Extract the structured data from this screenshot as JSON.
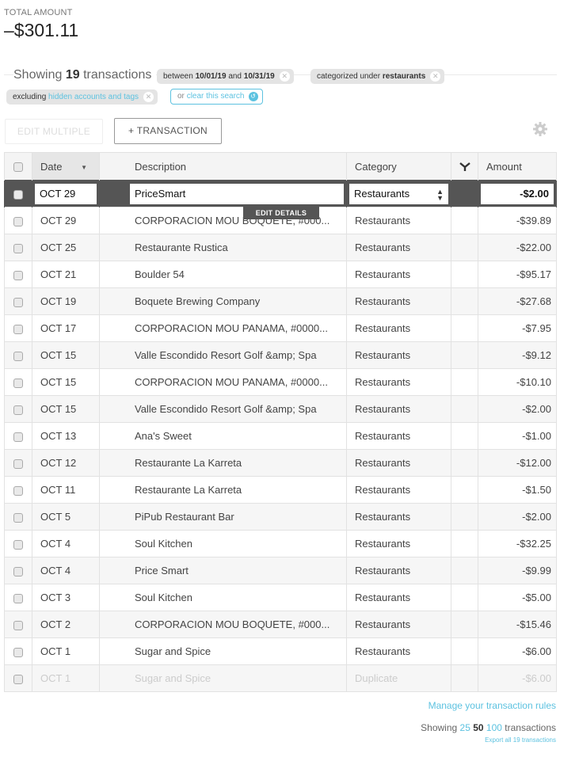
{
  "summary": {
    "total_label": "TOTAL AMOUNT",
    "total_value": "–$301.11"
  },
  "filters": {
    "showing_prefix": "Showing",
    "count": "19",
    "showing_suffix": "transactions",
    "date_chip": {
      "between": "between",
      "start": "10/01/19",
      "and": "and",
      "end": "10/31/19"
    },
    "category_chip": {
      "prefix": "categorized under",
      "value": "restaurants"
    },
    "exclude_chip": {
      "prefix": "excluding",
      "link": "hidden accounts and tags"
    },
    "clear_chip": {
      "prefix": "or",
      "link": "clear this search"
    }
  },
  "toolbar": {
    "edit_multiple": "EDIT MULTIPLE",
    "add_transaction": "+ TRANSACTION"
  },
  "table": {
    "headers": {
      "date": "Date",
      "description": "Description",
      "category": "Category",
      "amount": "Amount"
    },
    "editing_row": {
      "date": "OCT 29",
      "description": "PriceSmart",
      "category": "Restaurants",
      "amount": "-$2.00"
    },
    "tooltip": "EDIT DETAILS",
    "rows": [
      {
        "date": "OCT 29",
        "description": "CORPORACION MOU BOQUETE, #000...",
        "category": "Restaurants",
        "amount": "-$39.89"
      },
      {
        "date": "OCT 25",
        "description": "Restaurante Rustica",
        "category": "Restaurants",
        "amount": "-$22.00"
      },
      {
        "date": "OCT 21",
        "description": "Boulder 54",
        "category": "Restaurants",
        "amount": "-$95.17"
      },
      {
        "date": "OCT 19",
        "description": "Boquete Brewing Company",
        "category": "Restaurants",
        "amount": "-$27.68"
      },
      {
        "date": "OCT 17",
        "description": "CORPORACION MOU PANAMA, #0000...",
        "category": "Restaurants",
        "amount": "-$7.95"
      },
      {
        "date": "OCT 15",
        "description": "Valle Escondido Resort Golf &amp; Spa",
        "category": "Restaurants",
        "amount": "-$9.12"
      },
      {
        "date": "OCT 15",
        "description": "CORPORACION MOU PANAMA, #0000...",
        "category": "Restaurants",
        "amount": "-$10.10"
      },
      {
        "date": "OCT 15",
        "description": "Valle Escondido Resort Golf &amp; Spa",
        "category": "Restaurants",
        "amount": "-$2.00"
      },
      {
        "date": "OCT 13",
        "description": "Ana's Sweet",
        "category": "Restaurants",
        "amount": "-$1.00"
      },
      {
        "date": "OCT 12",
        "description": "Restaurante La Karreta",
        "category": "Restaurants",
        "amount": "-$12.00"
      },
      {
        "date": "OCT 11",
        "description": "Restaurante La Karreta",
        "category": "Restaurants",
        "amount": "-$1.50"
      },
      {
        "date": "OCT 5",
        "description": "PiPub Restaurant Bar",
        "category": "Restaurants",
        "amount": "-$2.00"
      },
      {
        "date": "OCT 4",
        "description": "Soul Kitchen",
        "category": "Restaurants",
        "amount": "-$32.25"
      },
      {
        "date": "OCT 4",
        "description": "Price Smart",
        "category": "Restaurants",
        "amount": "-$9.99"
      },
      {
        "date": "OCT 3",
        "description": "Soul Kitchen",
        "category": "Restaurants",
        "amount": "-$5.00"
      },
      {
        "date": "OCT 2",
        "description": "CORPORACION MOU BOQUETE, #000...",
        "category": "Restaurants",
        "amount": "-$15.46"
      },
      {
        "date": "OCT 1",
        "description": "Sugar and Spice",
        "category": "Restaurants",
        "amount": "-$6.00"
      },
      {
        "date": "OCT 1",
        "description": "Sugar and Spice",
        "category": "Duplicate",
        "amount": "-$6.00"
      }
    ]
  },
  "footer": {
    "manage_rules": "Manage your transaction rules",
    "showing": "Showing",
    "opt_25": "25",
    "opt_50": "50",
    "opt_100": "100",
    "transactions": "transactions",
    "export": "Export all 19 transactions"
  },
  "colors": {
    "accent": "#5cc2e0",
    "editing_row": "#555555"
  }
}
